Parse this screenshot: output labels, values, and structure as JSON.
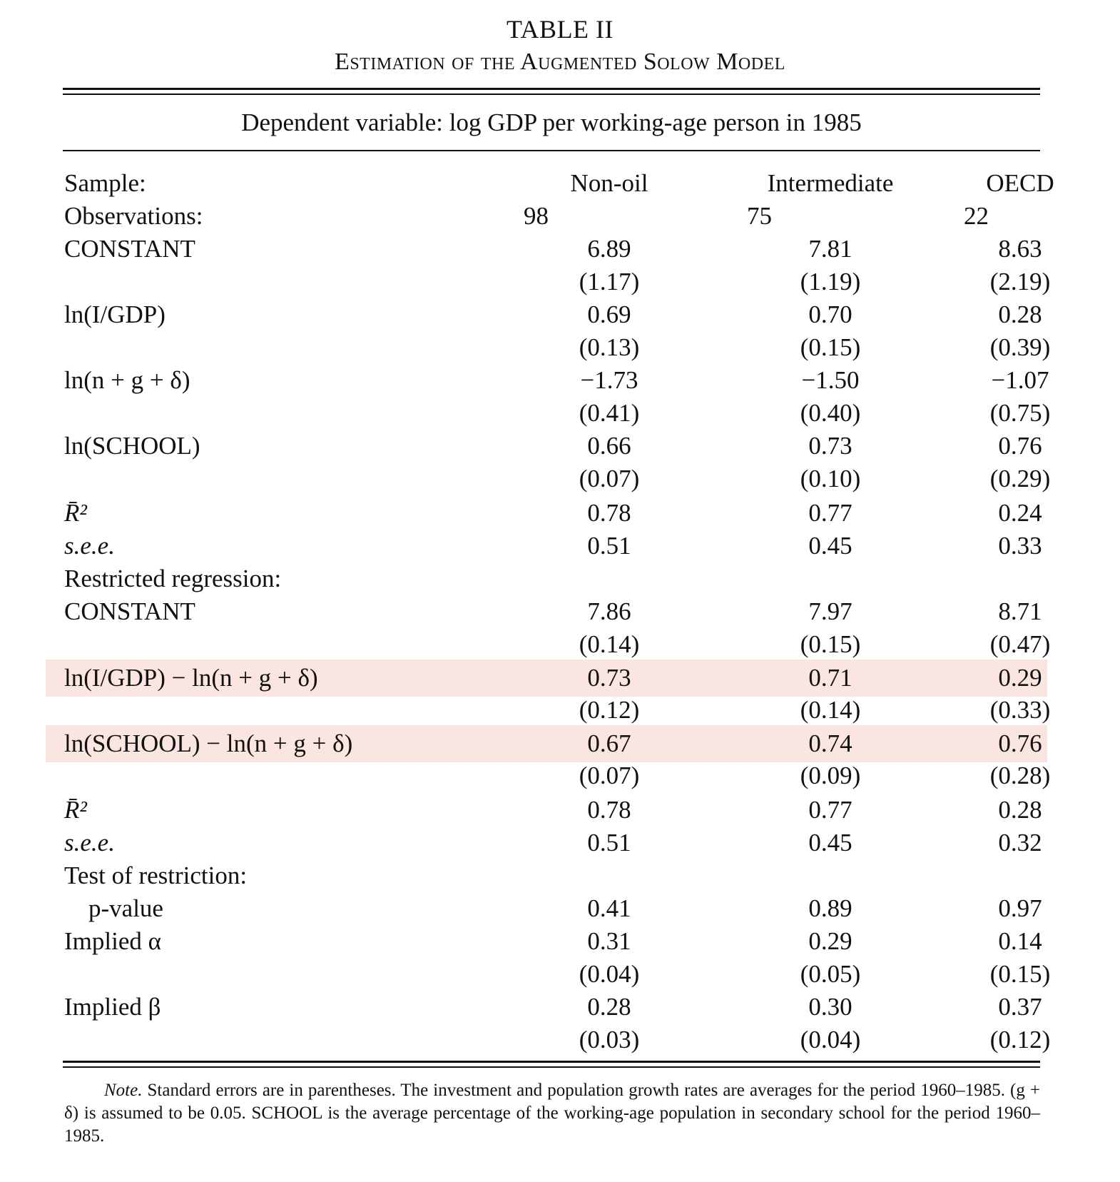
{
  "table_title": "TABLE II",
  "table_subtitle": "Estimation of the Augmented Solow Model",
  "dependent_variable": "Dependent variable: log GDP per working-age person in 1985",
  "columns": [
    "Non-oil",
    "Intermediate",
    "OECD"
  ],
  "rows": [
    {
      "label": "Sample:",
      "values": [
        "Non-oil",
        "Intermediate",
        "OECD"
      ]
    },
    {
      "label": "Observations:",
      "values": [
        "98",
        "75",
        "22"
      ]
    },
    {
      "label": "CONSTANT",
      "values": [
        "6.89",
        "7.81",
        "8.63"
      ]
    },
    {
      "label": "",
      "values": [
        "(1.17)",
        "(1.19)",
        "(2.19)"
      ]
    },
    {
      "label": "ln(I/GDP)",
      "values": [
        "0.69",
        "0.70",
        "0.28"
      ]
    },
    {
      "label": "",
      "values": [
        "(0.13)",
        "(0.15)",
        "(0.39)"
      ]
    },
    {
      "label": "ln(n + g + δ)",
      "values": [
        "−1.73",
        "−1.50",
        "−1.07"
      ]
    },
    {
      "label": "",
      "values": [
        "(0.41)",
        "(0.40)",
        "(0.75)"
      ]
    },
    {
      "label": "ln(SCHOOL)",
      "values": [
        "0.66",
        "0.73",
        "0.76"
      ]
    },
    {
      "label": "",
      "values": [
        "(0.07)",
        "(0.10)",
        "(0.29)"
      ]
    },
    {
      "label": "R̄²",
      "values": [
        "0.78",
        "0.77",
        "0.24"
      ]
    },
    {
      "label": "s.e.e.",
      "values": [
        "0.51",
        "0.45",
        "0.33"
      ]
    },
    {
      "label": "Restricted regression:",
      "values": [
        "",
        "",
        ""
      ]
    },
    {
      "label": "CONSTANT",
      "values": [
        "7.86",
        "7.97",
        "8.71"
      ]
    },
    {
      "label": "",
      "values": [
        "(0.14)",
        "(0.15)",
        "(0.47)"
      ]
    },
    {
      "label": "ln(I/GDP) − ln(n + g + δ)",
      "values": [
        "0.73",
        "0.71",
        "0.29"
      ]
    },
    {
      "label": "",
      "values": [
        "(0.12)",
        "(0.14)",
        "(0.33)"
      ]
    },
    {
      "label": "ln(SCHOOL) − ln(n + g + δ)",
      "values": [
        "0.67",
        "0.74",
        "0.76"
      ]
    },
    {
      "label": "",
      "values": [
        "(0.07)",
        "(0.09)",
        "(0.28)"
      ]
    },
    {
      "label": "R̄²",
      "values": [
        "0.78",
        "0.77",
        "0.28"
      ]
    },
    {
      "label": "s.e.e.",
      "values": [
        "0.51",
        "0.45",
        "0.32"
      ]
    },
    {
      "label": "Test of restriction:",
      "values": [
        "",
        "",
        ""
      ]
    },
    {
      "label": "p-value",
      "values": [
        "0.41",
        "0.89",
        "0.97"
      ]
    },
    {
      "label": "Implied α",
      "values": [
        "0.31",
        "0.29",
        "0.14"
      ]
    },
    {
      "label": "",
      "values": [
        "(0.04)",
        "(0.05)",
        "(0.15)"
      ]
    },
    {
      "label": "Implied β",
      "values": [
        "0.28",
        "0.30",
        "0.37"
      ]
    },
    {
      "label": "",
      "values": [
        "(0.03)",
        "(0.04)",
        "(0.12)"
      ]
    }
  ],
  "highlight_color": "#fbe5e1",
  "note": {
    "lead": "Note.",
    "text": " Standard errors are in parentheses. The investment and population growth rates are averages for the period 1960–1985. (g + δ) is assumed to be 0.05. SCHOOL is the average percentage of the working-age population in secondary school for the period 1960–1985."
  }
}
